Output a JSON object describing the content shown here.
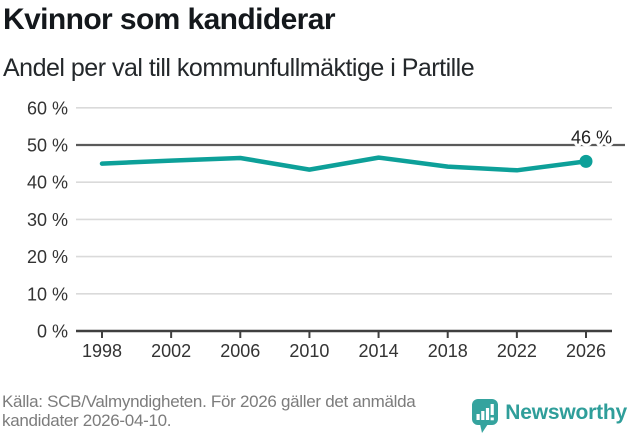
{
  "header": {
    "title": "Kvinnor som kandiderar",
    "subtitle": "Andel per val till kommunfullmäktige i Partille"
  },
  "chart_data": {
    "type": "line",
    "title": "Kvinnor som kandiderar",
    "subtitle": "Andel per val till kommunfullmäktige i Partille",
    "x": [
      "1998",
      "2002",
      "2006",
      "2010",
      "2014",
      "2018",
      "2022",
      "2026"
    ],
    "values": [
      45.0,
      45.8,
      46.5,
      43.4,
      46.6,
      44.2,
      43.2,
      45.6
    ],
    "unit": "%",
    "xlabel": "",
    "ylabel": "",
    "ylim": [
      0,
      60
    ],
    "ytick_step": 10,
    "ytick_suffix": " %",
    "grid": true,
    "reference_gridline": 50,
    "end_label": "46 %",
    "legend": "none",
    "line_color": "#0da099",
    "marker_color": "#0da099",
    "axis_color": "#3f3f3f",
    "grid_color": "#dadada",
    "reference_color": "#5a5a5a",
    "tick_label_color": "#333333",
    "end_label_color": "#222222"
  },
  "footer": {
    "source": "Källa: SCB/Valmyndigheten. För 2026 gäller det anmälda kandidater 2026-04-10.",
    "brand": "Newsworthy",
    "brand_color": "#2f9e9a",
    "icon_color": "#35a39e"
  }
}
